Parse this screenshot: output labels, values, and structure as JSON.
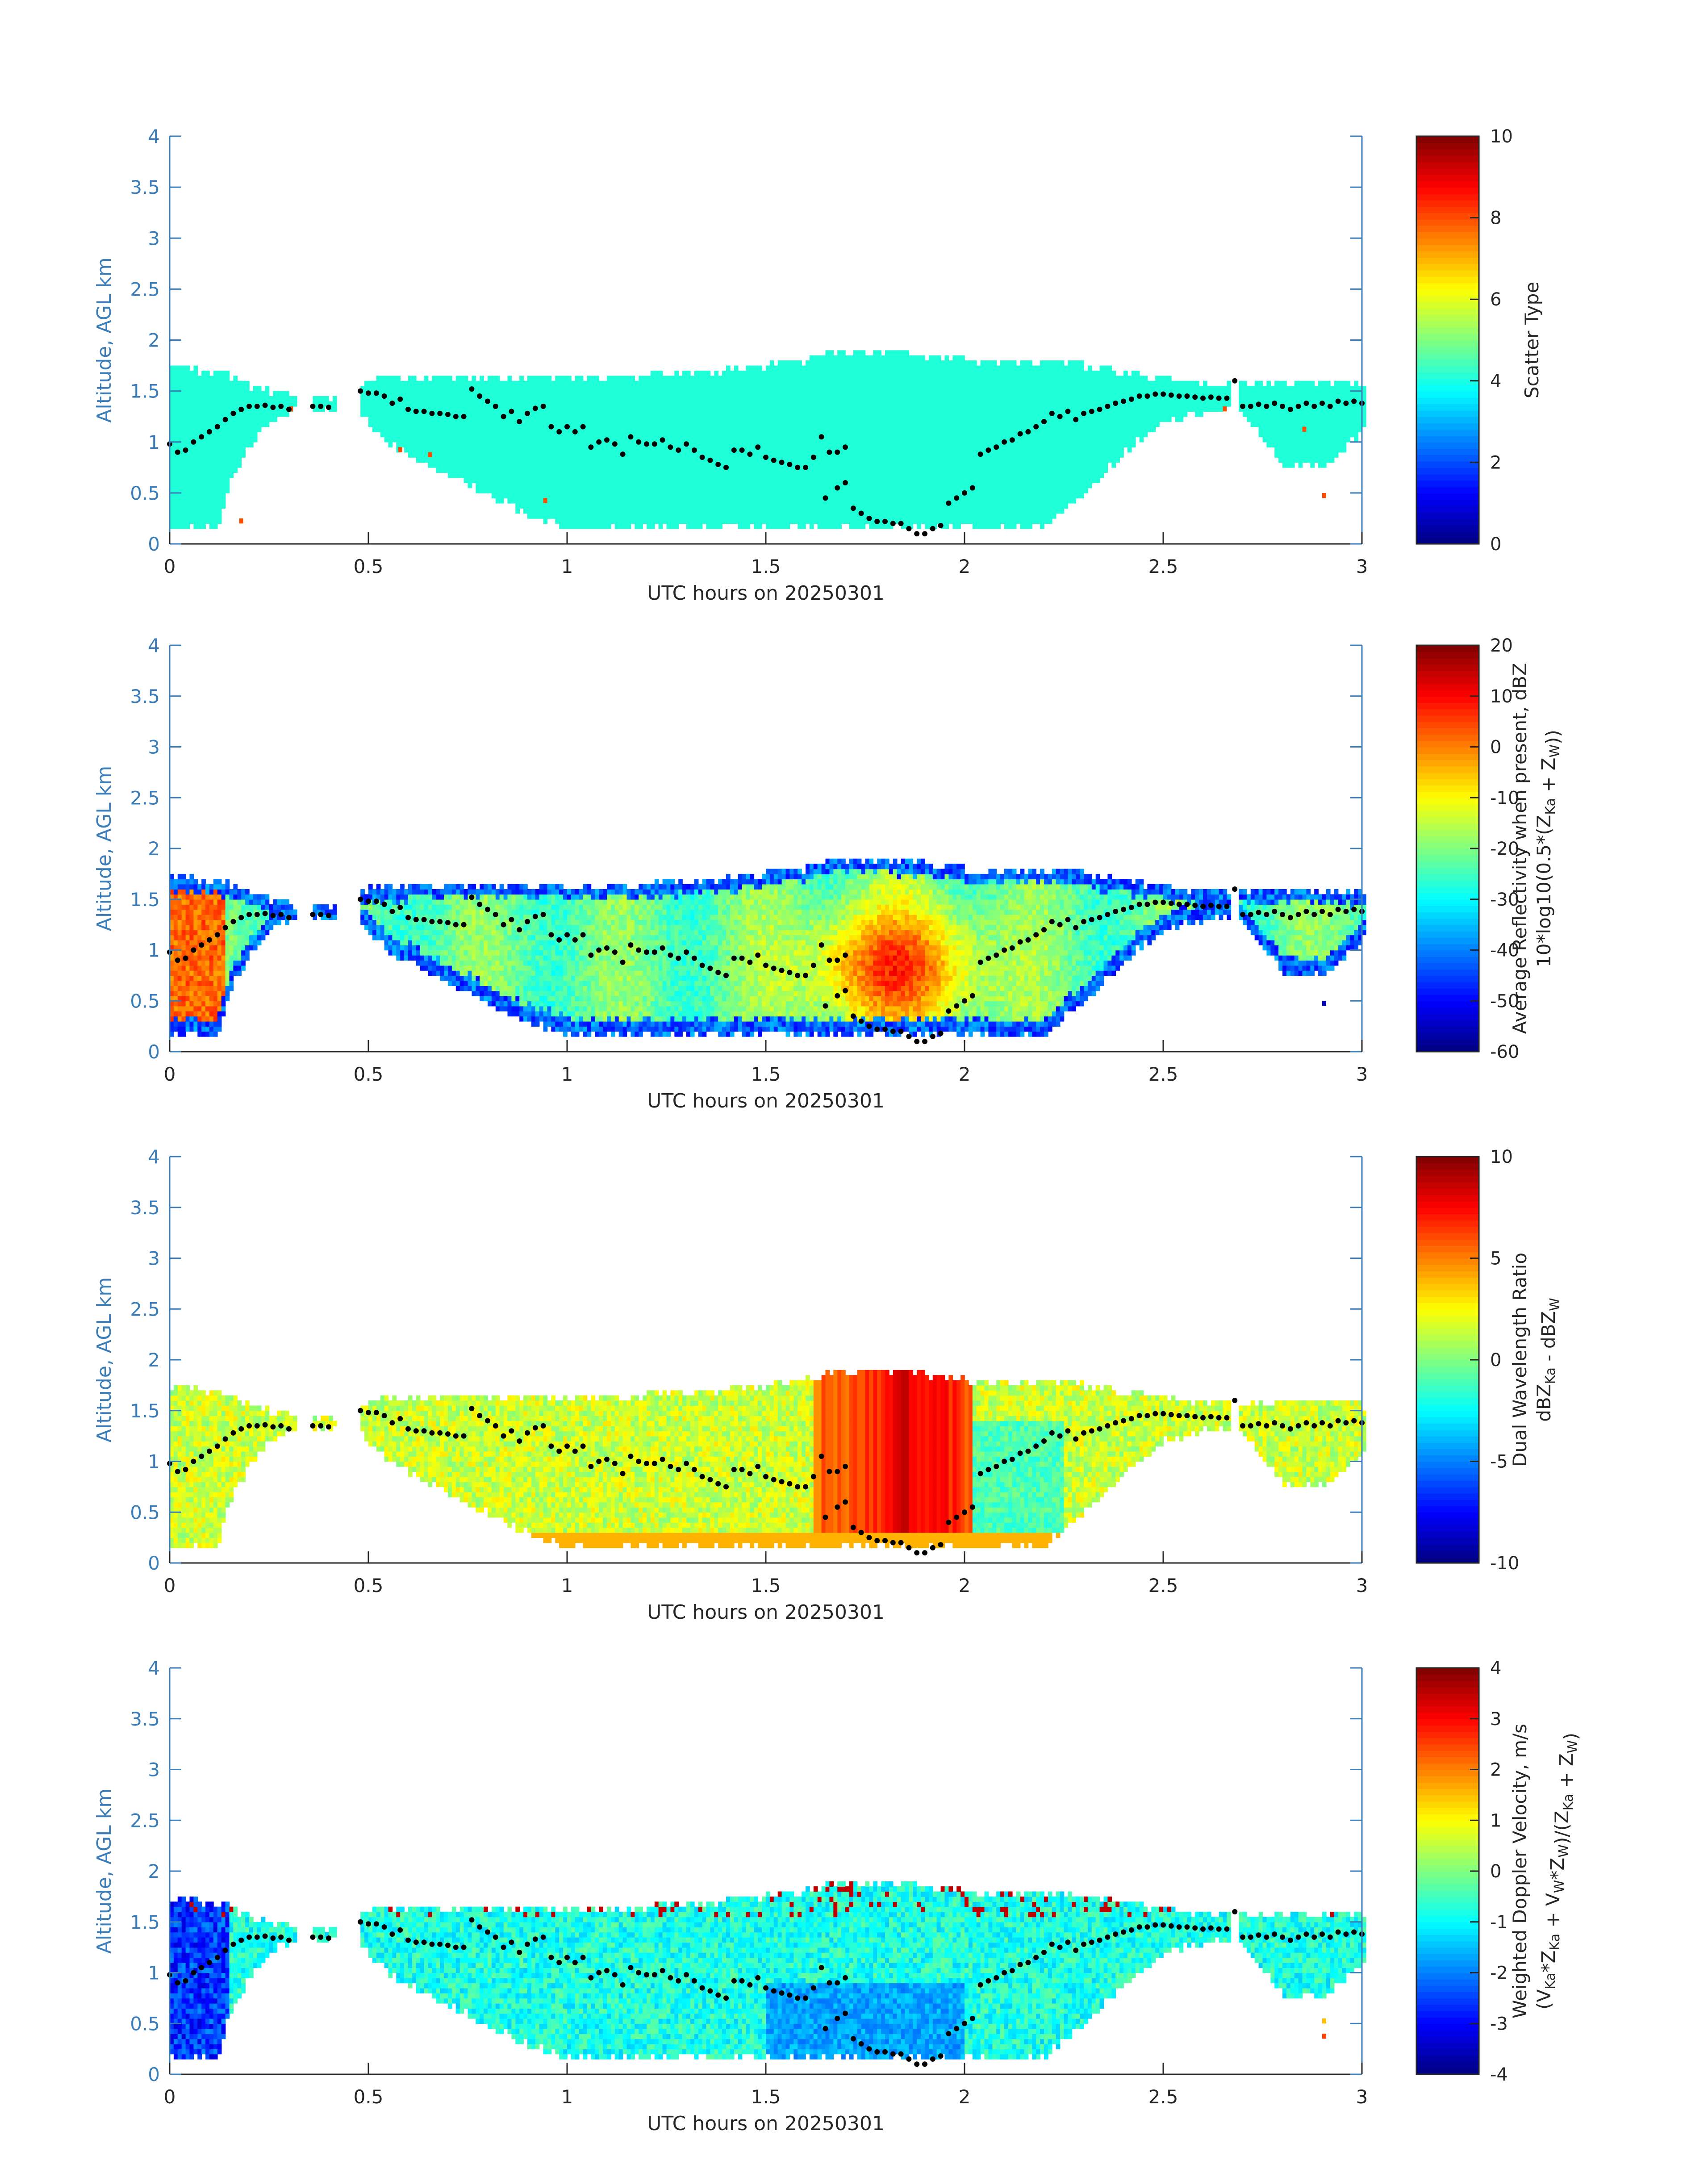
{
  "chart_data": [
    {
      "type": "heatmap",
      "title": "",
      "xlabel": "UTC hours on 20250301",
      "ylabel": "Altitude, AGL km",
      "xlim": [
        0,
        3
      ],
      "ylim": [
        0,
        4
      ],
      "xticks": [
        "0",
        "0.5",
        "1",
        "1.5",
        "2",
        "2.5",
        "3"
      ],
      "yticks": [
        "0",
        "0.5",
        "1",
        "1.5",
        "2",
        "2.5",
        "3",
        "3.5",
        "4"
      ],
      "colorbar": {
        "label_lines": [
          "Scatter Type"
        ],
        "range": [
          0,
          10
        ],
        "ticks": [
          "0",
          "2",
          "4",
          "6",
          "8",
          "10"
        ],
        "colormap": "jet"
      },
      "field": "scatter_type",
      "dominant_value": 3.5,
      "anomalies": [
        {
          "x": 0.175,
          "y": 0.2,
          "value": 8
        },
        {
          "x": 0.3,
          "y": 1.3,
          "value": 8
        },
        {
          "x": 0.575,
          "y": 0.9,
          "value": 8
        },
        {
          "x": 0.65,
          "y": 0.85,
          "value": 8
        },
        {
          "x": 0.94,
          "y": 0.4,
          "value": 8
        },
        {
          "x": 2.65,
          "y": 1.3,
          "value": 8
        },
        {
          "x": 2.85,
          "y": 1.1,
          "value": 8
        },
        {
          "x": 2.9,
          "y": 0.45,
          "value": 8
        }
      ]
    },
    {
      "type": "heatmap",
      "title": "",
      "xlabel": "UTC hours on 20250301",
      "ylabel": "Altitude, AGL km",
      "xlim": [
        0,
        3
      ],
      "ylim": [
        0,
        4
      ],
      "xticks": [
        "0",
        "0.5",
        "1",
        "1.5",
        "2",
        "2.5",
        "3"
      ],
      "yticks": [
        "0",
        "0.5",
        "1",
        "1.5",
        "2",
        "2.5",
        "3",
        "3.5",
        "4"
      ],
      "colorbar": {
        "label_lines": [
          "Average Reflectivity when present, dBZ",
          "10*log10(0.5*(Z{Ka} + Z{W}))"
        ],
        "range": [
          -60,
          20
        ],
        "ticks": [
          "-60",
          "-50",
          "-40",
          "-30",
          "-20",
          "-10",
          "0",
          "10",
          "20"
        ],
        "colormap": "jet"
      },
      "field": "reflectivity",
      "anomalies": [
        {
          "x": 2.9,
          "y": 0.45,
          "value": -55
        }
      ]
    },
    {
      "type": "heatmap",
      "title": "",
      "xlabel": "UTC hours on 20250301",
      "ylabel": "Altitude, AGL km",
      "xlim": [
        0,
        3
      ],
      "ylim": [
        0,
        4
      ],
      "xticks": [
        "0",
        "0.5",
        "1",
        "1.5",
        "2",
        "2.5",
        "3"
      ],
      "yticks": [
        "0",
        "0.5",
        "1",
        "1.5",
        "2",
        "2.5",
        "3",
        "3.5",
        "4"
      ],
      "colorbar": {
        "label_lines": [
          "Dual Wavelength Ratio",
          "dBZ{Ka} - dBZ{W}"
        ],
        "range": [
          -10,
          10
        ],
        "ticks": [
          "-10",
          "-5",
          "0",
          "5",
          "10"
        ],
        "colormap": "jet"
      },
      "field": "dwr",
      "anomalies": []
    },
    {
      "type": "heatmap",
      "title": "",
      "xlabel": "UTC hours on 20250301",
      "ylabel": "Altitude, AGL km",
      "xlim": [
        0,
        3
      ],
      "ylim": [
        0,
        4
      ],
      "xticks": [
        "0",
        "0.5",
        "1",
        "1.5",
        "2",
        "2.5",
        "3"
      ],
      "yticks": [
        "0",
        "0.5",
        "1",
        "1.5",
        "2",
        "2.5",
        "3",
        "3.5",
        "4"
      ],
      "colorbar": {
        "label_lines": [
          "Weighted Doppler Velocity, m/s",
          "(V{Ka}*Z{Ka} + V{W}*Z{W})/(Z{Ka} + Z{W})"
        ],
        "range": [
          -4,
          4
        ],
        "ticks": [
          "-4",
          "-3",
          "-2",
          "-1",
          "0",
          "1",
          "2",
          "3",
          "4"
        ],
        "colormap": "jet"
      },
      "field": "velocity",
      "anomalies": [
        {
          "x": 2.9,
          "y": 0.35,
          "value": 2.5
        },
        {
          "x": 2.9,
          "y": 0.5,
          "value": 1.5
        }
      ]
    }
  ],
  "cloud_extent": {
    "segments": [
      {
        "x": [
          0,
          3
        ],
        "top": [
          [
            0,
            1.72
          ],
          [
            0.05,
            1.72
          ],
          [
            0.1,
            1.68
          ],
          [
            0.15,
            1.65
          ],
          [
            0.2,
            1.55
          ],
          [
            0.3,
            1.45
          ],
          [
            0.42,
            1.42
          ],
          [
            0.5,
            1.6
          ],
          [
            0.6,
            1.62
          ],
          [
            0.8,
            1.65
          ],
          [
            1.0,
            1.65
          ],
          [
            1.2,
            1.65
          ],
          [
            1.4,
            1.7
          ],
          [
            1.6,
            1.8
          ],
          [
            1.7,
            1.9
          ],
          [
            1.8,
            1.88
          ],
          [
            1.9,
            1.85
          ],
          [
            2.0,
            1.8
          ],
          [
            2.2,
            1.78
          ],
          [
            2.3,
            1.75
          ],
          [
            2.4,
            1.68
          ],
          [
            2.5,
            1.62
          ],
          [
            2.6,
            1.56
          ],
          [
            2.67,
            1.55
          ],
          [
            2.7,
            1.6
          ],
          [
            2.75,
            1.55
          ],
          [
            2.85,
            1.6
          ],
          [
            2.95,
            1.58
          ],
          [
            3.0,
            1.55
          ]
        ],
        "bottom": [
          [
            0,
            0.18
          ],
          [
            0.12,
            0.18
          ],
          [
            0.15,
            0.6
          ],
          [
            0.2,
            0.95
          ],
          [
            0.25,
            1.2
          ],
          [
            0.3,
            1.3
          ],
          [
            0.42,
            1.3
          ],
          [
            0.48,
            1.3
          ],
          [
            0.55,
            1.0
          ],
          [
            0.65,
            0.8
          ],
          [
            0.8,
            0.5
          ],
          [
            0.9,
            0.3
          ],
          [
            1.0,
            0.18
          ],
          [
            1.5,
            0.18
          ],
          [
            2.0,
            0.18
          ],
          [
            2.2,
            0.18
          ],
          [
            2.3,
            0.5
          ],
          [
            2.4,
            0.9
          ],
          [
            2.5,
            1.2
          ],
          [
            2.6,
            1.3
          ],
          [
            2.67,
            1.3
          ],
          [
            2.7,
            1.3
          ],
          [
            2.8,
            0.8
          ],
          [
            2.9,
            0.75
          ],
          [
            3.0,
            1.1
          ]
        ]
      }
    ],
    "gaps": [
      [
        0.32,
        0.36
      ],
      [
        0.42,
        0.48
      ],
      [
        2.67,
        2.69
      ]
    ]
  },
  "black_dots": [
    [
      0,
      0.98
    ],
    [
      0.02,
      0.9
    ],
    [
      0.04,
      0.92
    ],
    [
      0.06,
      1.0
    ],
    [
      0.08,
      1.05
    ],
    [
      0.1,
      1.1
    ],
    [
      0.12,
      1.15
    ],
    [
      0.14,
      1.22
    ],
    [
      0.16,
      1.28
    ],
    [
      0.18,
      1.32
    ],
    [
      0.2,
      1.35
    ],
    [
      0.22,
      1.35
    ],
    [
      0.24,
      1.36
    ],
    [
      0.26,
      1.34
    ],
    [
      0.28,
      1.35
    ],
    [
      0.3,
      1.32
    ],
    [
      0.36,
      1.35
    ],
    [
      0.38,
      1.35
    ],
    [
      0.4,
      1.34
    ],
    [
      0.48,
      1.5
    ],
    [
      0.5,
      1.48
    ],
    [
      0.52,
      1.48
    ],
    [
      0.54,
      1.45
    ],
    [
      0.56,
      1.38
    ],
    [
      0.58,
      1.42
    ],
    [
      0.6,
      1.32
    ],
    [
      0.62,
      1.3
    ],
    [
      0.64,
      1.3
    ],
    [
      0.66,
      1.28
    ],
    [
      0.68,
      1.28
    ],
    [
      0.7,
      1.27
    ],
    [
      0.72,
      1.25
    ],
    [
      0.74,
      1.25
    ],
    [
      0.76,
      1.52
    ],
    [
      0.78,
      1.45
    ],
    [
      0.8,
      1.4
    ],
    [
      0.82,
      1.35
    ],
    [
      0.84,
      1.25
    ],
    [
      0.86,
      1.3
    ],
    [
      0.88,
      1.2
    ],
    [
      0.9,
      1.28
    ],
    [
      0.92,
      1.33
    ],
    [
      0.94,
      1.35
    ],
    [
      0.96,
      1.15
    ],
    [
      0.98,
      1.1
    ],
    [
      1.0,
      1.15
    ],
    [
      1.02,
      1.1
    ],
    [
      1.04,
      1.15
    ],
    [
      1.06,
      0.95
    ],
    [
      1.08,
      1.0
    ],
    [
      1.1,
      1.02
    ],
    [
      1.12,
      0.98
    ],
    [
      1.14,
      0.88
    ],
    [
      1.16,
      1.05
    ],
    [
      1.18,
      1.0
    ],
    [
      1.2,
      0.98
    ],
    [
      1.22,
      0.98
    ],
    [
      1.24,
      1.02
    ],
    [
      1.26,
      0.95
    ],
    [
      1.28,
      0.92
    ],
    [
      1.3,
      0.98
    ],
    [
      1.32,
      0.92
    ],
    [
      1.34,
      0.85
    ],
    [
      1.36,
      0.82
    ],
    [
      1.38,
      0.78
    ],
    [
      1.4,
      0.75
    ],
    [
      1.42,
      0.92
    ],
    [
      1.44,
      0.92
    ],
    [
      1.46,
      0.88
    ],
    [
      1.48,
      0.95
    ],
    [
      1.5,
      0.85
    ],
    [
      1.52,
      0.82
    ],
    [
      1.54,
      0.8
    ],
    [
      1.56,
      0.78
    ],
    [
      1.58,
      0.75
    ],
    [
      1.6,
      0.75
    ],
    [
      1.62,
      0.85
    ],
    [
      1.64,
      1.05
    ],
    [
      1.66,
      0.9
    ],
    [
      1.68,
      0.9
    ],
    [
      1.7,
      0.95
    ],
    [
      1.65,
      0.45
    ],
    [
      1.68,
      0.55
    ],
    [
      1.7,
      0.6
    ],
    [
      1.72,
      0.35
    ],
    [
      1.74,
      0.3
    ],
    [
      1.76,
      0.25
    ],
    [
      1.78,
      0.22
    ],
    [
      1.8,
      0.22
    ],
    [
      1.82,
      0.2
    ],
    [
      1.84,
      0.2
    ],
    [
      1.86,
      0.15
    ],
    [
      1.88,
      0.1
    ],
    [
      1.9,
      0.1
    ],
    [
      1.92,
      0.15
    ],
    [
      1.94,
      0.18
    ],
    [
      1.96,
      0.4
    ],
    [
      1.98,
      0.45
    ],
    [
      2.0,
      0.5
    ],
    [
      2.02,
      0.55
    ],
    [
      2.04,
      0.88
    ],
    [
      2.06,
      0.92
    ],
    [
      2.08,
      0.95
    ],
    [
      2.1,
      1.0
    ],
    [
      2.12,
      1.02
    ],
    [
      2.14,
      1.08
    ],
    [
      2.16,
      1.1
    ],
    [
      2.18,
      1.15
    ],
    [
      2.2,
      1.2
    ],
    [
      2.22,
      1.28
    ],
    [
      2.24,
      1.25
    ],
    [
      2.26,
      1.3
    ],
    [
      2.28,
      1.22
    ],
    [
      2.3,
      1.28
    ],
    [
      2.32,
      1.3
    ],
    [
      2.34,
      1.32
    ],
    [
      2.36,
      1.35
    ],
    [
      2.38,
      1.38
    ],
    [
      2.4,
      1.4
    ],
    [
      2.42,
      1.42
    ],
    [
      2.44,
      1.45
    ],
    [
      2.46,
      1.45
    ],
    [
      2.48,
      1.47
    ],
    [
      2.5,
      1.47
    ],
    [
      2.52,
      1.46
    ],
    [
      2.54,
      1.45
    ],
    [
      2.56,
      1.45
    ],
    [
      2.58,
      1.44
    ],
    [
      2.6,
      1.43
    ],
    [
      2.62,
      1.44
    ],
    [
      2.64,
      1.43
    ],
    [
      2.66,
      1.43
    ],
    [
      2.68,
      1.6
    ],
    [
      2.7,
      1.35
    ],
    [
      2.72,
      1.35
    ],
    [
      2.74,
      1.37
    ],
    [
      2.76,
      1.35
    ],
    [
      2.78,
      1.38
    ],
    [
      2.8,
      1.35
    ],
    [
      2.82,
      1.32
    ],
    [
      2.84,
      1.35
    ],
    [
      2.86,
      1.38
    ],
    [
      2.88,
      1.35
    ],
    [
      2.9,
      1.38
    ],
    [
      2.92,
      1.35
    ],
    [
      2.94,
      1.4
    ],
    [
      2.96,
      1.38
    ],
    [
      2.98,
      1.4
    ],
    [
      3.0,
      1.38
    ]
  ],
  "colors": {
    "axis": "#3a7db8",
    "text": "#262626",
    "background": "#ffffff"
  }
}
